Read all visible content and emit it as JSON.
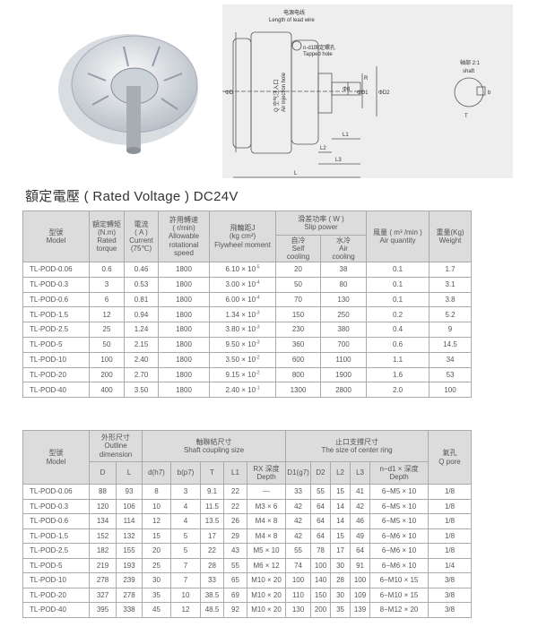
{
  "drawing": {
    "lead_wire_cn": "电源电线",
    "lead_wire": "Length of lead wire",
    "tapped_cn": "n-d1固定螺孔",
    "tapped": "Tapped hole",
    "air_cn": "Q 空气注入口",
    "air": "Air injection hole",
    "shaft_cn": "轴部 2:1",
    "shaft": "shaft",
    "dims": [
      "ΦD",
      "Φd",
      "ΦD1",
      "ΦD2",
      "R",
      "L1",
      "L2",
      "L3",
      "L",
      "b",
      "T"
    ]
  },
  "title": "額定電壓 ( Rated Voltage ) DC24V",
  "table1": {
    "headers": {
      "model": [
        "型號",
        "Model"
      ],
      "torque": [
        "額定轉矩",
        "(N.m)",
        "Rated",
        "torque"
      ],
      "current": [
        "電流",
        "( A )",
        "Current",
        "(75℃)"
      ],
      "speed": [
        "許用轉速",
        "( r/min)",
        "Allowable",
        "rotational",
        "speed"
      ],
      "flywheel": [
        "飛輪距J",
        "(kg cm²)",
        "Flywheel moment"
      ],
      "slip": [
        "滑差功率 ( W )",
        "Slip power"
      ],
      "self": [
        "自冷",
        "Self",
        "cooling"
      ],
      "aircool": [
        "水冷",
        "Air",
        "cooling"
      ],
      "airq": [
        "風量 ( m³ /min )",
        "Air quantity"
      ],
      "weight": [
        "重量(Kg)",
        "Weight"
      ]
    },
    "rows": [
      [
        "TL-POD-0.06",
        "0.6",
        "0.46",
        "1800",
        "6.10",
        "-5",
        "20",
        "38",
        "0.1",
        "1.7"
      ],
      [
        "TL-POD-0.3",
        "3",
        "0.53",
        "1800",
        "3.00",
        "-4",
        "50",
        "80",
        "0.1",
        "3.1"
      ],
      [
        "TL-POD-0.6",
        "6",
        "0.81",
        "1800",
        "6.00",
        "-4",
        "70",
        "130",
        "0.1",
        "3.8"
      ],
      [
        "TL-POD-1.5",
        "12",
        "0.94",
        "1800",
        "1.34",
        "-3",
        "150",
        "250",
        "0.2",
        "5.2"
      ],
      [
        "TL-POD-2.5",
        "25",
        "1.24",
        "1800",
        "3.80",
        "-3",
        "230",
        "380",
        "0.4",
        "9"
      ],
      [
        "TL-POD-5",
        "50",
        "2.15",
        "1800",
        "9.50",
        "-3",
        "360",
        "700",
        "0.6",
        "14.5"
      ],
      [
        "TL-POD-10",
        "100",
        "2.40",
        "1800",
        "3.50",
        "-2",
        "600",
        "1100",
        "1.1",
        "34"
      ],
      [
        "TL-POD-20",
        "200",
        "2.70",
        "1800",
        "9.15",
        "-2",
        "800",
        "1900",
        "1.6",
        "53"
      ],
      [
        "TL-POD-40",
        "400",
        "3.50",
        "1800",
        "2.40",
        "-1",
        "1300",
        "2800",
        "2.0",
        "100"
      ]
    ]
  },
  "table2": {
    "headers": {
      "model": [
        "型號",
        "Model"
      ],
      "outline": [
        "外形尺寸",
        "Outline",
        "dimension"
      ],
      "shaft": [
        "軸聯結尺寸",
        "Shaft coupling size"
      ],
      "ring": [
        "止口支撐尺寸",
        "The size of center ring"
      ],
      "pore": [
        "氣孔",
        "Q pore"
      ],
      "sub": [
        "D",
        "L",
        "d(h7)",
        "b(p7)",
        "T",
        "L1",
        "RX 深度\nDepth",
        "D1(g7)",
        "D2",
        "L2",
        "L3",
        "n−d1 × 深度\nDepth"
      ]
    },
    "rows": [
      [
        "TL-POD-0.06",
        "88",
        "93",
        "8",
        "3",
        "9.1",
        "22",
        "—",
        "33",
        "55",
        "15",
        "41",
        "6−M5 × 10",
        "1/8"
      ],
      [
        "TL-POD-0.3",
        "120",
        "106",
        "10",
        "4",
        "11.5",
        "22",
        "M3 × 6",
        "42",
        "64",
        "14",
        "42",
        "6−M5 × 10",
        "1/8"
      ],
      [
        "TL-POD-0.6",
        "134",
        "114",
        "12",
        "4",
        "13.5",
        "26",
        "M4 × 8",
        "42",
        "64",
        "14",
        "46",
        "6−M5 × 10",
        "1/8"
      ],
      [
        "TL-POD-1.5",
        "152",
        "132",
        "15",
        "5",
        "17",
        "29",
        "M4 × 8",
        "42",
        "64",
        "15",
        "49",
        "6−M6 × 10",
        "1/8"
      ],
      [
        "TL-POD-2.5",
        "182",
        "155",
        "20",
        "5",
        "22",
        "43",
        "M5 × 10",
        "55",
        "78",
        "17",
        "64",
        "6−M6 × 10",
        "1/8"
      ],
      [
        "TL-POD-5",
        "219",
        "193",
        "25",
        "7",
        "28",
        "55",
        "M6 × 12",
        "74",
        "100",
        "30",
        "91",
        "6−M6 × 10",
        "1/4"
      ],
      [
        "TL-POD-10",
        "278",
        "239",
        "30",
        "7",
        "33",
        "65",
        "M10 × 20",
        "100",
        "140",
        "28",
        "100",
        "6−M10 × 15",
        "3/8"
      ],
      [
        "TL-POD-20",
        "327",
        "278",
        "35",
        "10",
        "38.5",
        "69",
        "M10 × 20",
        "110",
        "150",
        "30",
        "109",
        "6−M10 × 15",
        "3/8"
      ],
      [
        "TL-POD-40",
        "395",
        "338",
        "45",
        "12",
        "48.5",
        "92",
        "M10 × 20",
        "130",
        "200",
        "35",
        "139",
        "8−M12 × 20",
        "3/8"
      ]
    ]
  }
}
